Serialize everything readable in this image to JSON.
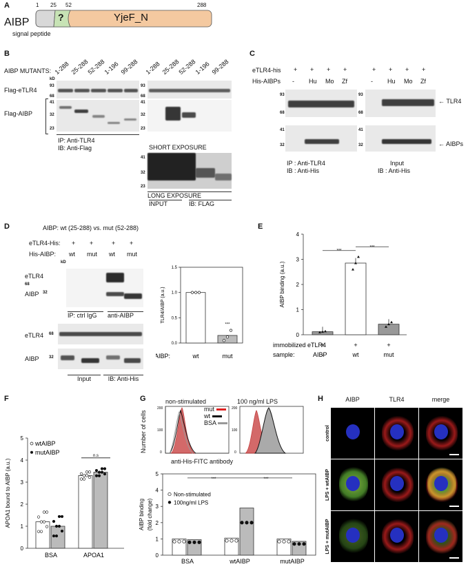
{
  "panelA": {
    "label": "A",
    "protein": "AIBP",
    "n1": "1",
    "n25": "25",
    "n52": "52",
    "n288": "288",
    "q": "?",
    "domain": "YjeF_N",
    "sp": "signal peptide"
  },
  "panelB": {
    "label": "B",
    "mutants_label": "AIBP MUTANTS:",
    "lanes": [
      "1-288",
      "25-288",
      "52-288",
      "1-196",
      "99-288"
    ],
    "flag_etlr4": "Flag-eTLR4",
    "flag_aibp": "Flag-AIBP",
    "kd": "kD",
    "mw_tlr": [
      "93",
      "68"
    ],
    "mw_aibp": [
      "41",
      "32",
      "23"
    ],
    "ip": "IP: Anti-TLR4",
    "ib": "IB: Anti-Flag",
    "short": "SHORT EXPOSURE",
    "long": "LONG EXPOSURE",
    "input": "INPUT",
    "ibflag": "IB: FLAG"
  },
  "panelC": {
    "label": "C",
    "etlr": "eTLR4-his",
    "his": "His-AIBPs",
    "plus": "+",
    "cols": [
      "-",
      "Hu",
      "Mo",
      "Zf"
    ],
    "mw_tlr": [
      "93",
      "68"
    ],
    "mw_aibp": [
      "41",
      "32"
    ],
    "tlr4": "TLR4",
    "aibps": "AIBPs",
    "ip": "IP : Anti-TLR4",
    "ib": "IB : Anti-His",
    "input": "Input",
    "ib2": "IB : Anti-His"
  },
  "panelD": {
    "label": "D",
    "title": "AIBP: wt (25-288) vs. mut (52-288)",
    "etlr": "eTLR4-His:",
    "his": "His-AIBP:",
    "plus": "+",
    "cols": [
      "wt",
      "mut",
      "wt",
      "mut"
    ],
    "kd": "kD",
    "etlr4": "eTLR4",
    "aibp": "AIBP",
    "mw68": "68",
    "mw32": "32",
    "ctrl": "IP: ctrl IgG",
    "anti": "anti-AIBP",
    "input": "Input",
    "ibhis": "IB: Anti-His",
    "ylabel": "TLR4/AIBP (a.u.)",
    "xlabel": "AIBP:",
    "sig": "***"
  },
  "panelE": {
    "label": "E",
    "ylabel": "AIBP binding (a.u.)",
    "row1": "immobilized eTLR4",
    "row2": "sample:",
    "row2b": "AIBP",
    "row1v": [
      "+",
      "+",
      "+"
    ],
    "row2v": [
      "-",
      "wt",
      "mut"
    ],
    "sig": "***"
  },
  "panelF": {
    "label": "F",
    "ylabel": "APOA1 bound to AIBP (a.u.)",
    "legend": [
      "wtAIBP",
      "mutAIBP"
    ],
    "ns": "n.s"
  },
  "panelG": {
    "label": "G",
    "ns_title": "non-stimulated",
    "lps_title": "100 ng/ml LPS",
    "ylab1": "Number of cells",
    "xlab1": "anti-His-FITC antibody",
    "leg": [
      "mut",
      "wt",
      "BSA"
    ],
    "ylab2a": "AIBP binding",
    "ylab2b": "(fold change)",
    "leg2": [
      "Non-stimulated",
      "100ng/ml LPS"
    ],
    "sig": "***"
  },
  "panelH": {
    "label": "H",
    "cols": [
      "AIBP",
      "TLR4",
      "merge"
    ],
    "rows": [
      "control",
      "LPS + wtAIBP",
      "LPS + mutAIBP"
    ]
  },
  "chart_data": [
    {
      "type": "bar",
      "panel": "D",
      "categories": [
        "wt",
        "mut"
      ],
      "values": [
        1.0,
        0.15
      ],
      "points": [
        [
          1.0,
          1.0,
          1.0
        ],
        [
          0.05,
          0.12,
          0.25
        ]
      ],
      "ylim": [
        0,
        1.5
      ],
      "yticks": [
        "0.0",
        "0.5",
        "1.0",
        "1.5"
      ],
      "xlabel": "AIBP:",
      "ylabel": "TLR4/AIBP (a.u.)"
    },
    {
      "type": "bar",
      "panel": "E",
      "categories": [
        "-",
        "wt",
        "mut"
      ],
      "values": [
        0.12,
        2.85,
        0.42
      ],
      "points": [
        [
          0.1,
          0.12,
          0.14
        ],
        [
          2.6,
          2.85,
          3.1
        ],
        [
          0.32,
          0.42,
          0.5
        ]
      ],
      "ylim": [
        0,
        4
      ],
      "yticks": [
        "0",
        "1",
        "2",
        "3",
        "4"
      ],
      "ylabel": "AIBP binding (a.u.)"
    },
    {
      "type": "bar",
      "panel": "F",
      "categories": [
        "BSA",
        "APOA1"
      ],
      "series": [
        {
          "name": "wtAIBP",
          "values": [
            1.2,
            3.3
          ]
        },
        {
          "name": "mutAIBP",
          "values": [
            1.0,
            3.45
          ]
        }
      ],
      "ylim": [
        0,
        5
      ],
      "yticks": [
        "0",
        "1",
        "2",
        "3",
        "4",
        "5"
      ],
      "ylabel": "APOA1 bound to AIBP (a.u.)"
    },
    {
      "type": "bar",
      "panel": "G",
      "categories": [
        "BSA",
        "wtAIBP",
        "mutAIBP"
      ],
      "series": [
        {
          "name": "Non-stimulated",
          "values": [
            1.0,
            1.05,
            1.0
          ]
        },
        {
          "name": "100ng/ml LPS",
          "values": [
            0.95,
            2.9,
            0.85
          ]
        }
      ],
      "ylim": [
        0,
        5
      ],
      "yticks": [
        "0",
        "1",
        "2",
        "3",
        "4",
        "5"
      ],
      "ylabel": "AIBP binding (fold change)"
    }
  ]
}
